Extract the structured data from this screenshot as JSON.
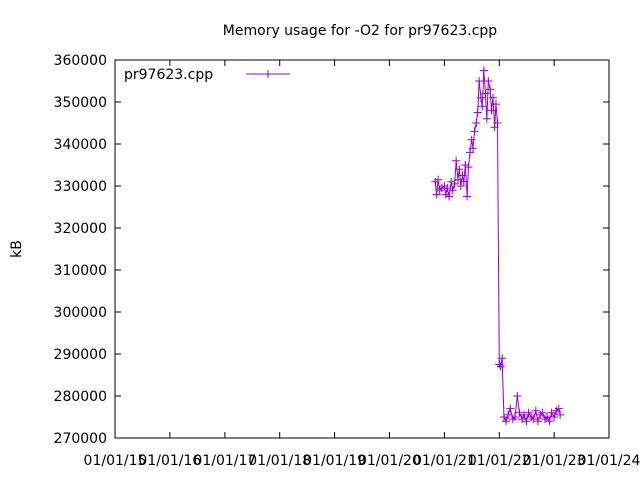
{
  "chart_data": {
    "type": "line",
    "title": "Memory usage for -O2 for pr97623.cpp",
    "ylabel": "kB",
    "xlabel": "",
    "ylim": [
      270000,
      360000
    ],
    "xlim": [
      "2015-01-01",
      "2024-01-01"
    ],
    "y_ticks": [
      "270000",
      "280000",
      "290000",
      "300000",
      "310000",
      "320000",
      "330000",
      "340000",
      "350000",
      "360000"
    ],
    "x_ticks": [
      "01/01/15",
      "01/01/16",
      "01/01/17",
      "01/01/18",
      "01/01/19",
      "01/01/20",
      "01/01/21",
      "01/01/22",
      "01/01/23",
      "01/01/24"
    ],
    "grid": false,
    "legend_position": "top-left",
    "series": [
      {
        "name": "pr97623.cpp",
        "color": "#9400d3",
        "points": [
          [
            "2020-11-01",
            331000
          ],
          [
            "2020-11-10",
            328000
          ],
          [
            "2020-11-20",
            331500
          ],
          [
            "2020-12-01",
            329000
          ],
          [
            "2020-12-15",
            329500
          ],
          [
            "2021-01-01",
            330000
          ],
          [
            "2021-01-10",
            328000
          ],
          [
            "2021-01-20",
            329500
          ],
          [
            "2021-02-01",
            327500
          ],
          [
            "2021-02-15",
            331000
          ],
          [
            "2021-02-25",
            329000
          ],
          [
            "2021-03-10",
            330500
          ],
          [
            "2021-03-20",
            336000
          ],
          [
            "2021-04-01",
            331500
          ],
          [
            "2021-04-10",
            334000
          ],
          [
            "2021-04-20",
            330000
          ],
          [
            "2021-05-01",
            332500
          ],
          [
            "2021-05-10",
            331000
          ],
          [
            "2021-05-20",
            335000
          ],
          [
            "2021-06-01",
            327500
          ],
          [
            "2021-06-10",
            334500
          ],
          [
            "2021-06-20",
            338000
          ],
          [
            "2021-07-01",
            341000
          ],
          [
            "2021-07-10",
            339000
          ],
          [
            "2021-07-20",
            343000
          ],
          [
            "2021-08-01",
            345000
          ],
          [
            "2021-08-10",
            347500
          ],
          [
            "2021-08-20",
            355000
          ],
          [
            "2021-09-01",
            351000
          ],
          [
            "2021-09-10",
            349000
          ],
          [
            "2021-09-20",
            357500
          ],
          [
            "2021-10-01",
            352000
          ],
          [
            "2021-10-10",
            346000
          ],
          [
            "2021-10-20",
            355000
          ],
          [
            "2021-11-01",
            353000
          ],
          [
            "2021-11-10",
            348000
          ],
          [
            "2021-11-20",
            351000
          ],
          [
            "2021-12-01",
            344000
          ],
          [
            "2021-12-10",
            349500
          ],
          [
            "2021-12-20",
            345000
          ],
          [
            "2022-01-01",
            287500
          ],
          [
            "2022-01-10",
            287000
          ],
          [
            "2022-01-20",
            289000
          ],
          [
            "2022-02-01",
            275000
          ],
          [
            "2022-02-15",
            274000
          ],
          [
            "2022-03-01",
            275500
          ],
          [
            "2022-03-15",
            277000
          ],
          [
            "2022-04-01",
            274500
          ],
          [
            "2022-04-15",
            275000
          ],
          [
            "2022-05-01",
            280000
          ],
          [
            "2022-05-15",
            276000
          ],
          [
            "2022-06-01",
            274500
          ],
          [
            "2022-06-15",
            275500
          ],
          [
            "2022-07-01",
            274000
          ],
          [
            "2022-07-15",
            276000
          ],
          [
            "2022-08-01",
            275000
          ],
          [
            "2022-08-15",
            274500
          ],
          [
            "2022-09-01",
            276500
          ],
          [
            "2022-09-15",
            274000
          ],
          [
            "2022-10-01",
            275500
          ],
          [
            "2022-10-15",
            276000
          ],
          [
            "2022-11-01",
            274500
          ],
          [
            "2022-11-15",
            275000
          ],
          [
            "2022-12-01",
            274000
          ],
          [
            "2022-12-15",
            276000
          ],
          [
            "2023-01-01",
            275000
          ],
          [
            "2023-01-15",
            276500
          ],
          [
            "2023-02-01",
            277000
          ],
          [
            "2023-02-10",
            275500
          ]
        ]
      }
    ]
  }
}
